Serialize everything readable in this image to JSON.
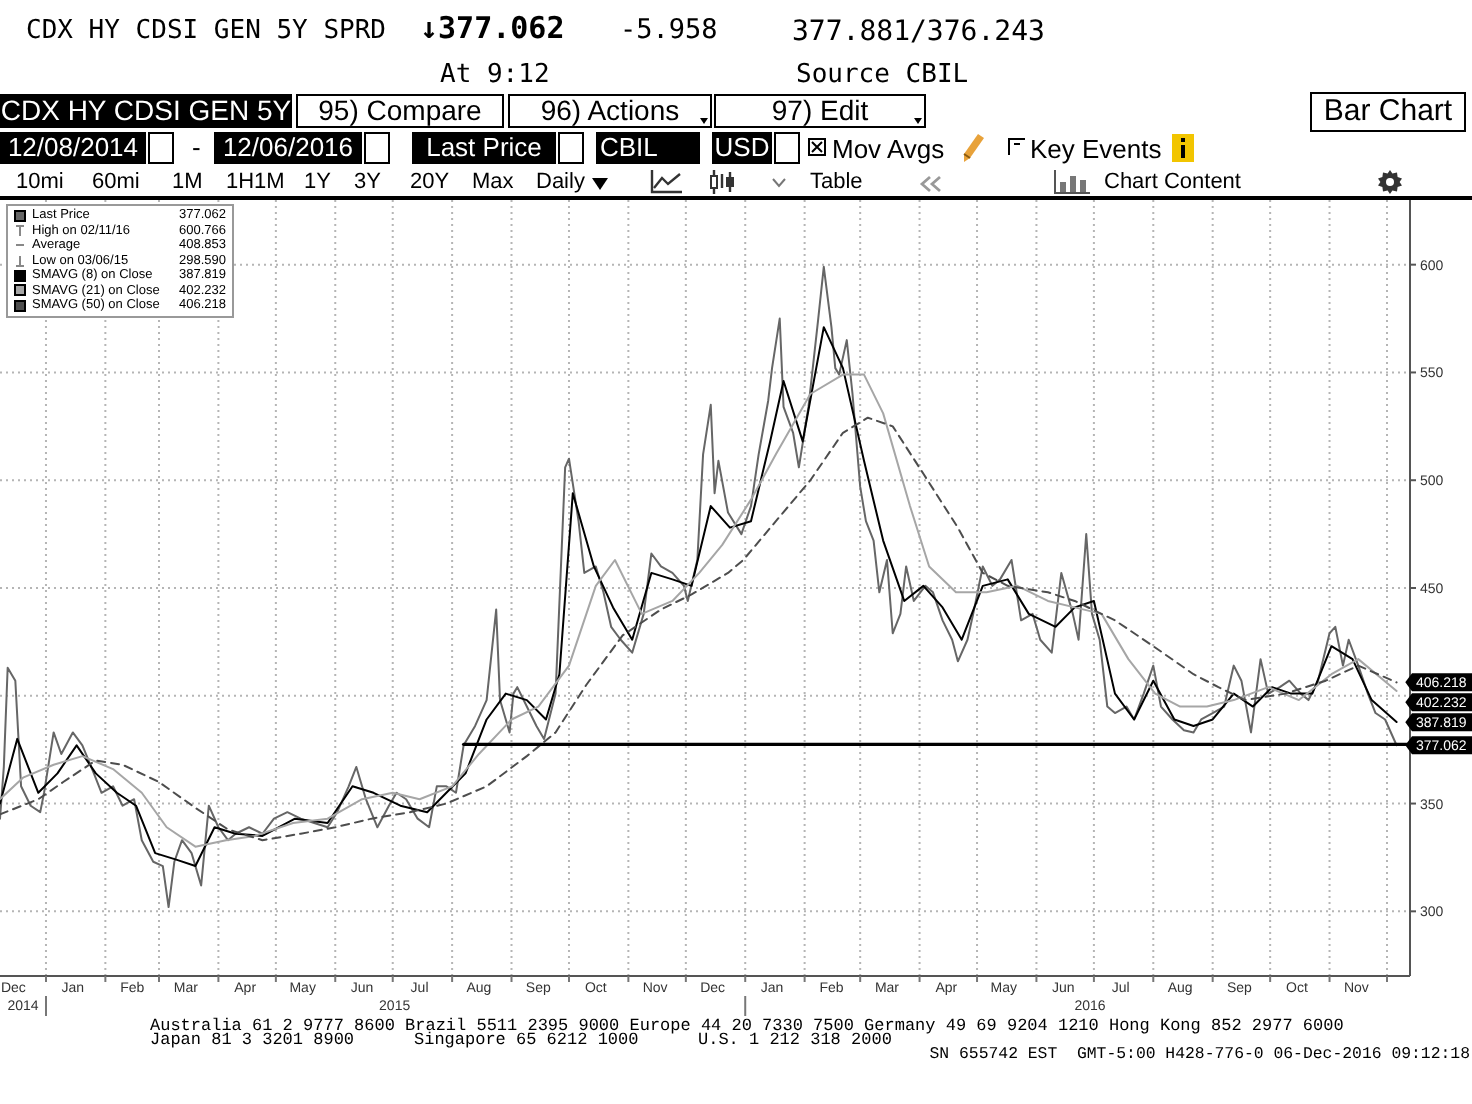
{
  "chart_data": {
    "type": "line",
    "title": "CDX HY CDSI GEN 5Y SPRD",
    "annotations": [
      "↓377.062",
      "-5.958",
      "377.881/376.243",
      "At 9:12",
      "Source CBIL",
      "CDX HY CDSI GEN 5Y",
      "95) Compare",
      "96) Actions",
      "97) Edit",
      "Bar Chart",
      "12/08/2014",
      "-",
      "12/06/2016",
      "Last Price",
      "CBIL",
      "USD",
      "Mov Avgs",
      "Key Events",
      "10mi",
      "60mi",
      "1M",
      "1H1M",
      "1Y",
      "3Y",
      "20Y",
      "Max",
      "Daily",
      "Table",
      "Chart Content",
      "377.062",
      "High on 02/11/16",
      "600.766",
      "Average",
      "408.853",
      "Low on 03/06/15",
      "298.590",
      "387.819",
      "402.232",
      "406.218",
      "Australia 61 2 9777 8600 Brazil 5511 2395 9000 Europe 44 20 7330 7500 Germany 49 69 9204 1210 Hong Kong 852 2977 6000",
      "Japan 81 3 3201 8900",
      "Singapore 65 6212 1000",
      "U.S. 1 212 318 2000",
      "SN 655742 EST  GMT-5:00 H428-776-0 06-Dec-2016 09:12:18",
      {
        "text": "406.218",
        "x": "2016-12-06",
        "y": 406.218
      },
      {
        "text": "402.232",
        "x": "2016-12-06",
        "y": 402.232
      },
      {
        "text": "387.819",
        "x": "2016-12-06",
        "y": 387.819
      },
      {
        "text": "377.062",
        "x": "2016-12-06",
        "y": 377.062
      }
    ],
    "xlim": [
      "2014-12-08",
      "2016-12-13"
    ],
    "xticks": [
      {
        "value": "2014-12-15",
        "label": "Dec"
      },
      {
        "value": "2015-01-01",
        "label": null
      },
      {
        "value": "2015-01-15",
        "label": "Jan"
      },
      {
        "value": "2015-02-01",
        "label": null
      },
      {
        "value": "2015-02-15",
        "label": "Feb"
      },
      {
        "value": "2015-03-01",
        "label": null
      },
      {
        "value": "2015-03-15",
        "label": "Mar"
      },
      {
        "value": "2015-04-01",
        "label": null
      },
      {
        "value": "2015-04-15",
        "label": "Apr"
      },
      {
        "value": "2015-05-01",
        "label": null
      },
      {
        "value": "2015-05-15",
        "label": "May"
      },
      {
        "value": "2015-06-01",
        "label": null
      },
      {
        "value": "2015-06-15",
        "label": "Jun"
      },
      {
        "value": "2015-07-01",
        "label": null
      },
      {
        "value": "2015-07-15",
        "label": "Jul"
      },
      {
        "value": "2015-08-01",
        "label": null
      },
      {
        "value": "2015-08-15",
        "label": "Aug"
      },
      {
        "value": "2015-09-01",
        "label": null
      },
      {
        "value": "2015-09-15",
        "label": "Sep"
      },
      {
        "value": "2015-10-01",
        "label": null
      },
      {
        "value": "2015-10-15",
        "label": "Oct"
      },
      {
        "value": "2015-11-01",
        "label": null
      },
      {
        "value": "2015-11-15",
        "label": "Nov"
      },
      {
        "value": "2015-12-01",
        "label": null
      },
      {
        "value": "2015-12-15",
        "label": "Dec"
      },
      {
        "value": "2016-01-01",
        "label": null
      },
      {
        "value": "2016-01-15",
        "label": "Jan"
      },
      {
        "value": "2016-02-01",
        "label": null
      },
      {
        "value": "2016-02-15",
        "label": "Feb"
      },
      {
        "value": "2016-03-01",
        "label": null
      },
      {
        "value": "2016-03-15",
        "label": "Mar"
      },
      {
        "value": "2016-04-01",
        "label": null
      },
      {
        "value": "2016-04-15",
        "label": "Apr"
      },
      {
        "value": "2016-05-01",
        "label": null
      },
      {
        "value": "2016-05-15",
        "label": "May"
      },
      {
        "value": "2016-06-01",
        "label": null
      },
      {
        "value": "2016-06-15",
        "label": "Jun"
      },
      {
        "value": "2016-07-01",
        "label": null
      },
      {
        "value": "2016-07-15",
        "label": "Jul"
      },
      {
        "value": "2016-08-01",
        "label": null
      },
      {
        "value": "2016-08-15",
        "label": "Aug"
      },
      {
        "value": "2016-09-01",
        "label": null
      },
      {
        "value": "2016-09-15",
        "label": "Sep"
      },
      {
        "value": "2016-10-01",
        "label": null
      },
      {
        "value": "2016-10-15",
        "label": "Oct"
      },
      {
        "value": "2016-11-01",
        "label": null
      },
      {
        "value": "2016-11-15",
        "label": "Nov"
      },
      {
        "value": "2016-12-01",
        "label": null
      }
    ],
    "x2lim": [
      "2014-12-08",
      "2016-12-13"
    ],
    "x2ticks": [
      {
        "value": "2014-12-20",
        "label": "2014"
      },
      {
        "value": "2015-01-01",
        "label": null
      },
      {
        "value": "2015-07-02",
        "label": "2015"
      },
      {
        "value": "2016-01-01",
        "label": null
      },
      {
        "value": "2016-06-29",
        "label": "2016"
      }
    ],
    "ylim": [
      270,
      630
    ],
    "yticks": [
      300,
      350,
      {
        "value": 400,
        "label": null
      },
      450,
      500,
      550,
      600
    ],
    "grid": true,
    "legend": "top left",
    "series": [
      {
        "name": "Last Price",
        "color": "#666666",
        "x": [
          "2014-12-08",
          "2014-12-10",
          "2014-12-12",
          "2014-12-16",
          "2014-12-19",
          "2014-12-24",
          "2014-12-29",
          "2014-12-31",
          "2015-01-05",
          "2015-01-09",
          "2015-01-15",
          "2015-01-20",
          "2015-01-26",
          "2015-01-30",
          "2015-02-05",
          "2015-02-10",
          "2015-02-16",
          "2015-02-20",
          "2015-02-26",
          "2015-03-03",
          "2015-03-06",
          "2015-03-09",
          "2015-03-13",
          "2015-03-18",
          "2015-03-23",
          "2015-03-27",
          "2015-04-01",
          "2015-04-06",
          "2015-04-10",
          "2015-04-17",
          "2015-04-24",
          "2015-04-30",
          "2015-05-07",
          "2015-05-14",
          "2015-05-21",
          "2015-05-28",
          "2015-06-02",
          "2015-06-08",
          "2015-06-12",
          "2015-06-17",
          "2015-06-23",
          "2015-06-29",
          "2015-07-03",
          "2015-07-08",
          "2015-07-14",
          "2015-07-20",
          "2015-07-24",
          "2015-07-29",
          "2015-08-03",
          "2015-08-07",
          "2015-08-13",
          "2015-08-19",
          "2015-08-24",
          "2015-08-26",
          "2015-08-31",
          "2015-09-02",
          "2015-09-04",
          "2015-09-09",
          "2015-09-14",
          "2015-09-18",
          "2015-09-24",
          "2015-09-29",
          "2015-10-01",
          "2015-10-06",
          "2015-10-09",
          "2015-10-15",
          "2015-10-19",
          "2015-10-23",
          "2015-10-28",
          "2015-11-03",
          "2015-11-09",
          "2015-11-13",
          "2015-11-18",
          "2015-11-24",
          "2015-11-30",
          "2015-12-02",
          "2015-12-07",
          "2015-12-10",
          "2015-12-14",
          "2015-12-16",
          "2015-12-18",
          "2015-12-23",
          "2015-12-30",
          "2016-01-04",
          "2016-01-08",
          "2016-01-13",
          "2016-01-15",
          "2016-01-19",
          "2016-01-21",
          "2016-01-26",
          "2016-01-29",
          "2016-02-03",
          "2016-02-08",
          "2016-02-11",
          "2016-02-15",
          "2016-02-17",
          "2016-02-19",
          "2016-02-23",
          "2016-02-26",
          "2016-03-01",
          "2016-03-04",
          "2016-03-08",
          "2016-03-11",
          "2016-03-15",
          "2016-03-18",
          "2016-03-22",
          "2016-03-25",
          "2016-03-29",
          "2016-04-04",
          "2016-04-08",
          "2016-04-13",
          "2016-04-18",
          "2016-04-21",
          "2016-04-26",
          "2016-04-29",
          "2016-05-04",
          "2016-05-09",
          "2016-05-13",
          "2016-05-19",
          "2016-05-24",
          "2016-05-30",
          "2016-06-03",
          "2016-06-09",
          "2016-06-14",
          "2016-06-20",
          "2016-06-23",
          "2016-06-27",
          "2016-06-30",
          "2016-07-04",
          "2016-07-08",
          "2016-07-12",
          "2016-07-18",
          "2016-07-22",
          "2016-07-27",
          "2016-08-01",
          "2016-08-05",
          "2016-08-11",
          "2016-08-17",
          "2016-08-22",
          "2016-08-26",
          "2016-09-01",
          "2016-09-07",
          "2016-09-12",
          "2016-09-16",
          "2016-09-21",
          "2016-09-26",
          "2016-09-30",
          "2016-10-06",
          "2016-10-11",
          "2016-10-17",
          "2016-10-21",
          "2016-10-26",
          "2016-11-01",
          "2016-11-04",
          "2016-11-08",
          "2016-11-11",
          "2016-11-16",
          "2016-11-21",
          "2016-11-25",
          "2016-11-30",
          "2016-12-06"
        ],
        "values": [
          343,
          367,
          413,
          407,
          358,
          349,
          346,
          355,
          383,
          373,
          383,
          377,
          364,
          355,
          358,
          349,
          352,
          333,
          323,
          321,
          302,
          323,
          333,
          327,
          312,
          349,
          339,
          333,
          336,
          339,
          336,
          343,
          346,
          343,
          341,
          339,
          346,
          358,
          367,
          352,
          339,
          349,
          355,
          352,
          343,
          339,
          358,
          358,
          355,
          377,
          386,
          398,
          440,
          398,
          383,
          401,
          404,
          395,
          386,
          380,
          401,
          506,
          510,
          481,
          457,
          460,
          448,
          432,
          426,
          420,
          438,
          466,
          460,
          457,
          451,
          444,
          463,
          512,
          535,
          494,
          509,
          485,
          475,
          488,
          512,
          537,
          552,
          575,
          534,
          522,
          506,
          534,
          574,
          599,
          571,
          552,
          549,
          565,
          540,
          497,
          481,
          472,
          448,
          463,
          429,
          438,
          460,
          444,
          451,
          448,
          435,
          426,
          416,
          426,
          438,
          460,
          451,
          454,
          463,
          435,
          438,
          426,
          420,
          457,
          438,
          426,
          475,
          438,
          426,
          395,
          392,
          395,
          389,
          401,
          414,
          395,
          389,
          384,
          383,
          389,
          392,
          395,
          414,
          407,
          383,
          417,
          401,
          404,
          407,
          401,
          398,
          407,
          429,
          432,
          414,
          426,
          414,
          401,
          392,
          389,
          377.062
        ]
      },
      {
        "name": "SMAVG (8) on Close",
        "color": "#000000",
        "x": [
          "2014-12-08",
          "2014-12-17",
          "2014-12-28",
          "2015-01-07",
          "2015-01-17",
          "2015-01-27",
          "2015-02-07",
          "2015-02-17",
          "2015-02-27",
          "2015-03-10",
          "2015-03-20",
          "2015-03-30",
          "2015-04-10",
          "2015-04-24",
          "2015-05-11",
          "2015-05-28",
          "2015-06-10",
          "2015-06-21",
          "2015-07-05",
          "2015-07-19",
          "2015-07-29",
          "2015-08-08",
          "2015-08-19",
          "2015-08-29",
          "2015-09-09",
          "2015-09-19",
          "2015-09-26",
          "2015-10-03",
          "2015-10-14",
          "2015-10-24",
          "2015-11-03",
          "2015-11-13",
          "2015-11-24",
          "2015-12-04",
          "2015-12-14",
          "2015-12-24",
          "2016-01-04",
          "2016-01-14",
          "2016-01-21",
          "2016-01-31",
          "2016-02-11",
          "2016-02-21",
          "2016-03-03",
          "2016-03-13",
          "2016-03-24",
          "2016-04-03",
          "2016-04-13",
          "2016-04-23",
          "2016-05-04",
          "2016-05-17",
          "2016-05-28",
          "2016-06-11",
          "2016-06-21",
          "2016-07-01",
          "2016-07-12",
          "2016-07-22",
          "2016-08-01",
          "2016-08-12",
          "2016-08-22",
          "2016-09-01",
          "2016-09-12",
          "2016-09-22",
          "2016-10-02",
          "2016-10-12",
          "2016-10-23",
          "2016-11-02",
          "2016-11-13",
          "2016-11-23",
          "2016-12-06"
        ],
        "values": [
          350,
          380,
          355,
          364,
          377,
          364,
          355,
          349,
          327,
          324,
          321,
          339,
          336,
          335,
          343,
          341,
          358,
          355,
          349,
          346,
          355,
          364,
          389,
          401,
          398,
          389,
          410,
          494,
          460,
          441,
          426,
          457,
          454,
          451,
          488,
          478,
          481,
          518,
          546,
          518,
          571,
          552,
          509,
          472,
          444,
          451,
          441,
          426,
          451,
          454,
          438,
          432,
          441,
          444,
          401,
          389,
          407,
          389,
          386,
          389,
          401,
          395,
          404,
          401,
          401,
          423,
          417,
          398,
          387.819
        ]
      },
      {
        "name": "SMAVG (21) on Close",
        "color": "#a6a6a6",
        "x": [
          "2014-12-08",
          "2014-12-20",
          "2015-01-05",
          "2015-01-20",
          "2015-02-05",
          "2015-02-20",
          "2015-03-05",
          "2015-03-20",
          "2015-04-05",
          "2015-04-20",
          "2015-05-10",
          "2015-05-28",
          "2015-06-15",
          "2015-07-01",
          "2015-07-15",
          "2015-08-01",
          "2015-08-15",
          "2015-09-01",
          "2015-09-15",
          "2015-10-01",
          "2015-10-15",
          "2015-10-25",
          "2015-11-08",
          "2015-11-24",
          "2015-12-08",
          "2015-12-20",
          "2016-01-04",
          "2016-01-17",
          "2016-02-04",
          "2016-02-21",
          "2016-03-03",
          "2016-03-13",
          "2016-03-27",
          "2016-04-06",
          "2016-04-20",
          "2016-05-06",
          "2016-05-22",
          "2016-06-07",
          "2016-06-21",
          "2016-07-05",
          "2016-07-19",
          "2016-08-02",
          "2016-08-15",
          "2016-08-29",
          "2016-09-12",
          "2016-09-30",
          "2016-10-16",
          "2016-11-02",
          "2016-11-16",
          "2016-12-06"
        ],
        "values": [
          352,
          362,
          368,
          372,
          366,
          355,
          339,
          330,
          333,
          335,
          341,
          343,
          352,
          355,
          352,
          358,
          373,
          389,
          395,
          414,
          451,
          463,
          438,
          444,
          457,
          470,
          491,
          512,
          540,
          549,
          549,
          531,
          488,
          460,
          448,
          448,
          451,
          444,
          441,
          438,
          417,
          401,
          395,
          395,
          398,
          404,
          398,
          410,
          417,
          402.232
        ]
      },
      {
        "name": "SMAVG (50) on Close",
        "color": "#4d4d4d",
        "line_style": "dashed",
        "x": [
          "2014-12-08",
          "2014-12-28",
          "2015-01-10",
          "2015-01-27",
          "2015-02-10",
          "2015-03-01",
          "2015-03-20",
          "2015-04-06",
          "2015-04-24",
          "2015-05-14",
          "2015-06-01",
          "2015-06-20",
          "2015-07-10",
          "2015-07-29",
          "2015-08-19",
          "2015-09-09",
          "2015-09-24",
          "2015-10-10",
          "2015-10-29",
          "2015-11-18",
          "2015-12-04",
          "2015-12-23",
          "2015-12-31",
          "2016-01-17",
          "2016-02-04",
          "2016-02-21",
          "2016-03-05",
          "2016-03-18",
          "2016-04-03",
          "2016-04-21",
          "2016-05-04",
          "2016-05-17",
          "2016-06-07",
          "2016-06-21",
          "2016-07-12",
          "2016-08-01",
          "2016-08-22",
          "2016-09-04",
          "2016-09-18",
          "2016-10-09",
          "2016-10-30",
          "2016-11-16",
          "2016-12-06"
        ],
        "values": [
          345,
          352,
          360,
          370,
          368,
          360,
          348,
          338,
          333,
          336,
          339,
          343,
          346,
          350,
          358,
          372,
          383,
          405,
          428,
          440,
          447,
          457,
          463,
          481,
          500,
          522,
          529,
          525,
          503,
          478,
          457,
          451,
          448,
          444,
          435,
          423,
          410,
          404,
          398,
          401,
          407,
          414,
          406.218
        ]
      },
      {
        "color": "#000000",
        "x": [
          "2015-08-07",
          "2016-12-13"
        ],
        "values": [
          377.5,
          377.5
        ]
      }
    ]
  }
}
